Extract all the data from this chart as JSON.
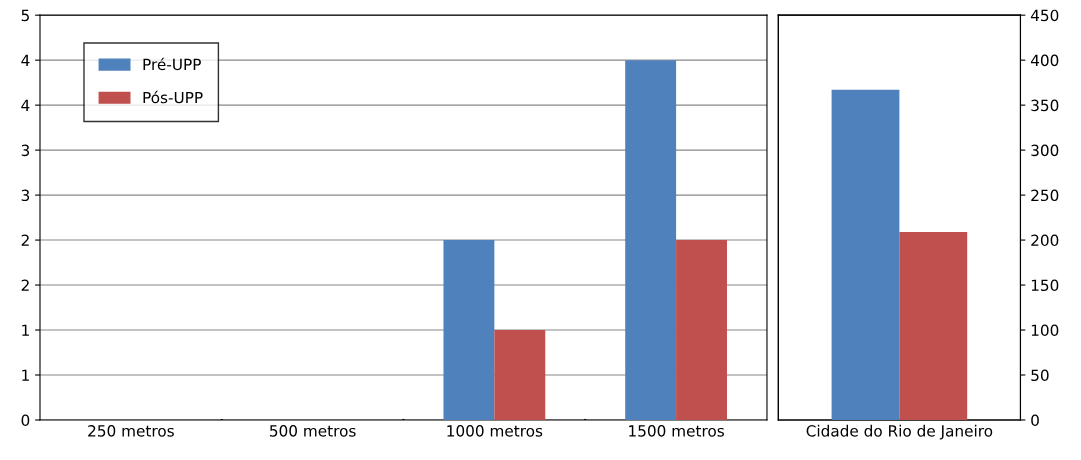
{
  "chart_data": [
    {
      "type": "bar",
      "categories": [
        "250 metros",
        "500 metros",
        "1000 metros",
        "1500 metros"
      ],
      "series": [
        {
          "name": "Pré-UPP",
          "color": "#4f81bd",
          "values": [
            0,
            0,
            2,
            4
          ]
        },
        {
          "name": "Pós-UPP",
          "color": "#c0504d",
          "values": [
            0,
            0,
            1,
            2
          ]
        }
      ],
      "ylim": [
        0,
        4.5
      ],
      "yticks": [
        0,
        {
          "value": 0.5,
          "label": "1"
        },
        1,
        {
          "value": 1.5,
          "label": "2"
        },
        2,
        {
          "value": 2.5,
          "label": "3"
        },
        3,
        {
          "value": 3.5,
          "label": "4"
        },
        4,
        {
          "value": 4.5,
          "label": "5"
        }
      ],
      "grid": "y",
      "legend": "top left"
    },
    {
      "type": "bar",
      "categories": [
        "Cidade do Rio de Janeiro"
      ],
      "series": [
        {
          "color": "#4f81bd",
          "values": [
            367
          ],
          "axis": "y2"
        },
        {
          "color": "#c0504d",
          "values": [
            209
          ],
          "axis": "y2"
        }
      ],
      "y2lim": [
        0,
        450
      ],
      "y2ticks": [
        0,
        50,
        100,
        150,
        200,
        250,
        300,
        350,
        400,
        450
      ]
    }
  ]
}
